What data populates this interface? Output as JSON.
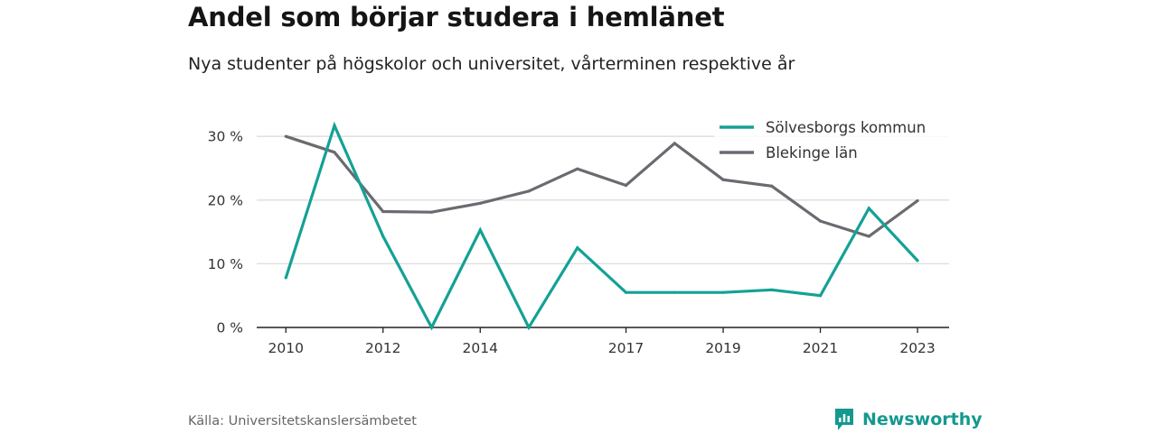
{
  "header": {
    "title": "Andel som börjar studera i hemlänet",
    "subtitle": "Nya studenter på högskolor och universitet, vårterminen respektive år"
  },
  "footer": {
    "source": "Källa: Universitetskanslersämbetet",
    "brand": "Newsworthy"
  },
  "colors": {
    "solvesborg": "#14a195",
    "blekinge": "#6b6a70",
    "grid": "#dddddd",
    "axis": "#222222",
    "brand": "#14998f"
  },
  "chart_data": {
    "type": "line",
    "title": "Andel som börjar studera i hemlänet",
    "subtitle": "Nya studenter på högskolor och universitet, vårterminen respektive år",
    "x": [
      2010,
      2011,
      2012,
      2013,
      2014,
      2015,
      2016,
      2017,
      2018,
      2019,
      2020,
      2021,
      2022,
      2023
    ],
    "x_tick_labels": [
      "2010",
      "2012",
      "2014",
      "2017",
      "2019",
      "2021",
      "2023"
    ],
    "x_tick_values": [
      2010,
      2012,
      2014,
      2017,
      2019,
      2021,
      2023
    ],
    "y_tick_labels": [
      "0 %",
      "10 %",
      "20 %",
      "30 %"
    ],
    "y_tick_values": [
      0,
      10,
      20,
      30
    ],
    "xlim": [
      2009.4,
      2023.65
    ],
    "ylim": [
      0,
      33
    ],
    "grid": "horizontal",
    "legend_position": "top-right",
    "series": [
      {
        "name": "Sölvesborgs kommun",
        "values": [
          7.8,
          31.7,
          14.3,
          0.0,
          15.3,
          0.0,
          12.5,
          5.5,
          5.5,
          5.5,
          5.9,
          5.0,
          18.7,
          10.5
        ]
      },
      {
        "name": "Blekinge län",
        "values": [
          30.0,
          27.5,
          18.2,
          18.1,
          19.5,
          21.4,
          24.9,
          22.3,
          28.9,
          23.2,
          22.2,
          16.7,
          14.3,
          19.9
        ]
      }
    ]
  }
}
